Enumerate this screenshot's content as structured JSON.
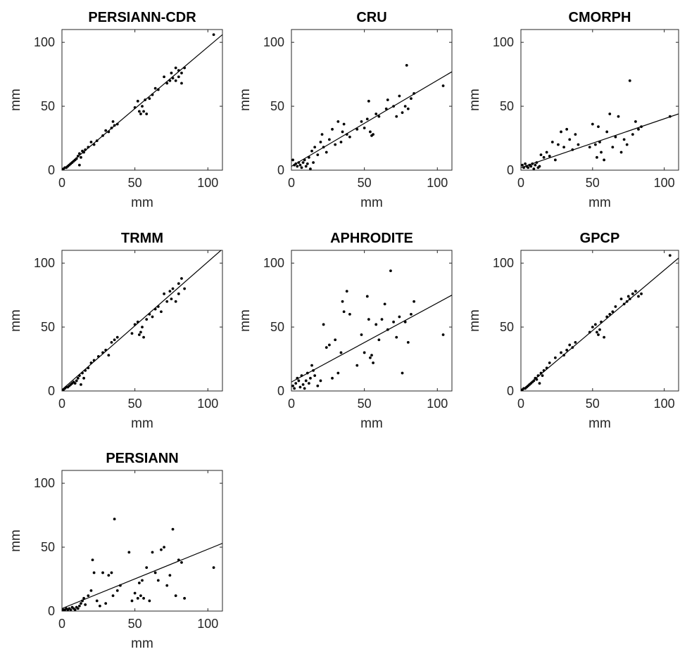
{
  "chart_data": [
    {
      "type": "scatter",
      "title": "PERSIANN-CDR",
      "xlabel": "mm",
      "ylabel": "mm",
      "xlim": [
        0,
        110
      ],
      "ylim": [
        0,
        110
      ],
      "xticks": [
        0,
        50,
        100
      ],
      "yticks": [
        0,
        50,
        100
      ],
      "fit": [
        0,
        106
      ],
      "points": [
        [
          1,
          1
        ],
        [
          2,
          2
        ],
        [
          3,
          2
        ],
        [
          4,
          3
        ],
        [
          5,
          4
        ],
        [
          6,
          5
        ],
        [
          7,
          6
        ],
        [
          8,
          7
        ],
        [
          9,
          8
        ],
        [
          10,
          9
        ],
        [
          11,
          11
        ],
        [
          12,
          4
        ],
        [
          12,
          13
        ],
        [
          13,
          10
        ],
        [
          14,
          15
        ],
        [
          15,
          14
        ],
        [
          16,
          16
        ],
        [
          18,
          18
        ],
        [
          20,
          22
        ],
        [
          22,
          20
        ],
        [
          24,
          23
        ],
        [
          28,
          27
        ],
        [
          30,
          31
        ],
        [
          32,
          30
        ],
        [
          34,
          33
        ],
        [
          35,
          38
        ],
        [
          36,
          35
        ],
        [
          38,
          36
        ],
        [
          50,
          49
        ],
        [
          52,
          54
        ],
        [
          53,
          46
        ],
        [
          54,
          44
        ],
        [
          55,
          50
        ],
        [
          56,
          46
        ],
        [
          57,
          55
        ],
        [
          58,
          44
        ],
        [
          60,
          56
        ],
        [
          62,
          59
        ],
        [
          64,
          64
        ],
        [
          66,
          63
        ],
        [
          70,
          73
        ],
        [
          72,
          68
        ],
        [
          74,
          70
        ],
        [
          75,
          76
        ],
        [
          76,
          72
        ],
        [
          78,
          80
        ],
        [
          78,
          70
        ],
        [
          80,
          73
        ],
        [
          80,
          78
        ],
        [
          82,
          68
        ],
        [
          82,
          76
        ],
        [
          84,
          80
        ],
        [
          104,
          106
        ]
      ]
    },
    {
      "type": "scatter",
      "title": "CRU",
      "xlabel": "mm",
      "ylabel": "mm",
      "xlim": [
        0,
        110
      ],
      "ylim": [
        0,
        110
      ],
      "xticks": [
        0,
        50,
        100
      ],
      "yticks": [
        0,
        50,
        100
      ],
      "fit": [
        3,
        77
      ],
      "points": [
        [
          1,
          8
        ],
        [
          2,
          4
        ],
        [
          3,
          5
        ],
        [
          4,
          3
        ],
        [
          5,
          6
        ],
        [
          6,
          4
        ],
        [
          7,
          2
        ],
        [
          8,
          6
        ],
        [
          9,
          8
        ],
        [
          10,
          3
        ],
        [
          11,
          5
        ],
        [
          12,
          10
        ],
        [
          13,
          1
        ],
        [
          14,
          15
        ],
        [
          15,
          6
        ],
        [
          16,
          18
        ],
        [
          18,
          12
        ],
        [
          20,
          22
        ],
        [
          21,
          28
        ],
        [
          22,
          18
        ],
        [
          24,
          14
        ],
        [
          26,
          24
        ],
        [
          28,
          32
        ],
        [
          30,
          20
        ],
        [
          32,
          38
        ],
        [
          34,
          22
        ],
        [
          35,
          30
        ],
        [
          36,
          36
        ],
        [
          38,
          28
        ],
        [
          40,
          26
        ],
        [
          45,
          32
        ],
        [
          48,
          38
        ],
        [
          50,
          33
        ],
        [
          52,
          40
        ],
        [
          53,
          54
        ],
        [
          54,
          30
        ],
        [
          55,
          27
        ],
        [
          56,
          28
        ],
        [
          58,
          44
        ],
        [
          60,
          42
        ],
        [
          65,
          48
        ],
        [
          66,
          55
        ],
        [
          70,
          50
        ],
        [
          72,
          42
        ],
        [
          74,
          58
        ],
        [
          76,
          45
        ],
        [
          78,
          50
        ],
        [
          79,
          82
        ],
        [
          80,
          48
        ],
        [
          82,
          56
        ],
        [
          84,
          60
        ],
        [
          104,
          66
        ]
      ]
    },
    {
      "type": "scatter",
      "title": "CMORPH",
      "xlabel": "mm",
      "ylabel": "mm",
      "xlim": [
        0,
        110
      ],
      "ylim": [
        0,
        110
      ],
      "xticks": [
        0,
        50,
        100
      ],
      "yticks": [
        0,
        50,
        100
      ],
      "fit": [
        2,
        44
      ],
      "points": [
        [
          1,
          4
        ],
        [
          2,
          2
        ],
        [
          3,
          5
        ],
        [
          4,
          3
        ],
        [
          5,
          2
        ],
        [
          6,
          4
        ],
        [
          7,
          3
        ],
        [
          8,
          5
        ],
        [
          9,
          1
        ],
        [
          10,
          4
        ],
        [
          11,
          6
        ],
        [
          12,
          2
        ],
        [
          13,
          3
        ],
        [
          14,
          12
        ],
        [
          16,
          10
        ],
        [
          18,
          14
        ],
        [
          20,
          11
        ],
        [
          22,
          22
        ],
        [
          24,
          8
        ],
        [
          26,
          20
        ],
        [
          28,
          30
        ],
        [
          30,
          18
        ],
        [
          32,
          32
        ],
        [
          34,
          24
        ],
        [
          36,
          16
        ],
        [
          38,
          28
        ],
        [
          40,
          20
        ],
        [
          48,
          18
        ],
        [
          50,
          36
        ],
        [
          52,
          20
        ],
        [
          53,
          10
        ],
        [
          54,
          34
        ],
        [
          55,
          22
        ],
        [
          56,
          14
        ],
        [
          58,
          8
        ],
        [
          60,
          30
        ],
        [
          62,
          44
        ],
        [
          64,
          18
        ],
        [
          66,
          26
        ],
        [
          68,
          42
        ],
        [
          70,
          14
        ],
        [
          72,
          24
        ],
        [
          74,
          20
        ],
        [
          76,
          70
        ],
        [
          78,
          28
        ],
        [
          80,
          38
        ],
        [
          82,
          32
        ],
        [
          84,
          34
        ],
        [
          104,
          42
        ]
      ]
    },
    {
      "type": "scatter",
      "title": "TRMM",
      "xlabel": "mm",
      "ylabel": "mm",
      "xlim": [
        0,
        110
      ],
      "ylim": [
        0,
        110
      ],
      "xticks": [
        0,
        50,
        100
      ],
      "yticks": [
        0,
        50,
        100
      ],
      "fit": [
        1,
        111
      ],
      "points": [
        [
          1,
          1
        ],
        [
          2,
          2
        ],
        [
          3,
          3
        ],
        [
          4,
          3
        ],
        [
          5,
          4
        ],
        [
          6,
          5
        ],
        [
          7,
          6
        ],
        [
          8,
          7
        ],
        [
          9,
          6
        ],
        [
          10,
          8
        ],
        [
          11,
          10
        ],
        [
          12,
          12
        ],
        [
          13,
          5
        ],
        [
          14,
          14
        ],
        [
          15,
          10
        ],
        [
          16,
          16
        ],
        [
          18,
          18
        ],
        [
          20,
          22
        ],
        [
          22,
          24
        ],
        [
          25,
          27
        ],
        [
          28,
          30
        ],
        [
          30,
          32
        ],
        [
          32,
          28
        ],
        [
          34,
          38
        ],
        [
          36,
          40
        ],
        [
          38,
          42
        ],
        [
          48,
          45
        ],
        [
          50,
          52
        ],
        [
          52,
          54
        ],
        [
          53,
          44
        ],
        [
          54,
          46
        ],
        [
          55,
          50
        ],
        [
          56,
          42
        ],
        [
          58,
          56
        ],
        [
          60,
          60
        ],
        [
          62,
          58
        ],
        [
          64,
          64
        ],
        [
          66,
          66
        ],
        [
          68,
          62
        ],
        [
          70,
          76
        ],
        [
          72,
          70
        ],
        [
          74,
          78
        ],
        [
          75,
          72
        ],
        [
          76,
          80
        ],
        [
          78,
          70
        ],
        [
          80,
          84
        ],
        [
          80,
          76
        ],
        [
          82,
          88
        ],
        [
          84,
          80
        ]
      ]
    },
    {
      "type": "scatter",
      "title": "APHRODITE",
      "xlabel": "mm",
      "ylabel": "mm",
      "xlim": [
        0,
        110
      ],
      "ylim": [
        0,
        110
      ],
      "xticks": [
        0,
        50,
        100
      ],
      "yticks": [
        0,
        50,
        100
      ],
      "fit": [
        7,
        75
      ],
      "points": [
        [
          1,
          4
        ],
        [
          2,
          2
        ],
        [
          3,
          6
        ],
        [
          4,
          10
        ],
        [
          5,
          8
        ],
        [
          6,
          3
        ],
        [
          7,
          12
        ],
        [
          8,
          5
        ],
        [
          9,
          2
        ],
        [
          10,
          8
        ],
        [
          11,
          14
        ],
        [
          12,
          6
        ],
        [
          13,
          10
        ],
        [
          14,
          20
        ],
        [
          15,
          16
        ],
        [
          16,
          12
        ],
        [
          18,
          4
        ],
        [
          20,
          8
        ],
        [
          22,
          52
        ],
        [
          24,
          34
        ],
        [
          26,
          36
        ],
        [
          28,
          10
        ],
        [
          30,
          40
        ],
        [
          32,
          14
        ],
        [
          34,
          30
        ],
        [
          35,
          70
        ],
        [
          36,
          62
        ],
        [
          38,
          78
        ],
        [
          40,
          60
        ],
        [
          45,
          20
        ],
        [
          48,
          44
        ],
        [
          50,
          30
        ],
        [
          52,
          74
        ],
        [
          53,
          56
        ],
        [
          54,
          26
        ],
        [
          55,
          28
        ],
        [
          56,
          22
        ],
        [
          58,
          52
        ],
        [
          60,
          40
        ],
        [
          62,
          56
        ],
        [
          64,
          68
        ],
        [
          66,
          48
        ],
        [
          68,
          94
        ],
        [
          70,
          54
        ],
        [
          72,
          42
        ],
        [
          74,
          58
        ],
        [
          76,
          14
        ],
        [
          78,
          54
        ],
        [
          80,
          38
        ],
        [
          82,
          60
        ],
        [
          84,
          70
        ],
        [
          104,
          44
        ]
      ]
    },
    {
      "type": "scatter",
      "title": "GPCP",
      "xlabel": "mm",
      "ylabel": "mm",
      "xlim": [
        0,
        110
      ],
      "ylim": [
        0,
        110
      ],
      "xticks": [
        0,
        50,
        100
      ],
      "yticks": [
        0,
        50,
        100
      ],
      "fit": [
        0,
        104
      ],
      "points": [
        [
          1,
          1
        ],
        [
          2,
          2
        ],
        [
          3,
          2
        ],
        [
          4,
          3
        ],
        [
          5,
          4
        ],
        [
          6,
          5
        ],
        [
          7,
          6
        ],
        [
          8,
          7
        ],
        [
          9,
          8
        ],
        [
          10,
          10
        ],
        [
          11,
          9
        ],
        [
          12,
          12
        ],
        [
          13,
          6
        ],
        [
          14,
          14
        ],
        [
          15,
          12
        ],
        [
          16,
          16
        ],
        [
          18,
          18
        ],
        [
          20,
          22
        ],
        [
          24,
          26
        ],
        [
          28,
          30
        ],
        [
          30,
          28
        ],
        [
          32,
          32
        ],
        [
          34,
          36
        ],
        [
          36,
          34
        ],
        [
          38,
          38
        ],
        [
          48,
          46
        ],
        [
          50,
          50
        ],
        [
          52,
          52
        ],
        [
          53,
          46
        ],
        [
          54,
          44
        ],
        [
          55,
          48
        ],
        [
          56,
          54
        ],
        [
          58,
          42
        ],
        [
          60,
          58
        ],
        [
          62,
          60
        ],
        [
          64,
          62
        ],
        [
          66,
          66
        ],
        [
          70,
          72
        ],
        [
          72,
          68
        ],
        [
          74,
          70
        ],
        [
          75,
          74
        ],
        [
          76,
          72
        ],
        [
          78,
          76
        ],
        [
          80,
          78
        ],
        [
          82,
          74
        ],
        [
          84,
          76
        ],
        [
          104,
          106
        ]
      ]
    },
    {
      "type": "scatter",
      "title": "PERSIANN",
      "xlabel": "mm",
      "ylabel": "mm",
      "xlim": [
        0,
        110
      ],
      "ylim": [
        0,
        110
      ],
      "xticks": [
        0,
        50,
        100
      ],
      "yticks": [
        0,
        50,
        100
      ],
      "fit": [
        2,
        53
      ],
      "points": [
        [
          1,
          1
        ],
        [
          2,
          1
        ],
        [
          3,
          2
        ],
        [
          4,
          1
        ],
        [
          5,
          2
        ],
        [
          6,
          1
        ],
        [
          7,
          3
        ],
        [
          8,
          2
        ],
        [
          9,
          1
        ],
        [
          10,
          3
        ],
        [
          11,
          2
        ],
        [
          12,
          4
        ],
        [
          13,
          6
        ],
        [
          14,
          8
        ],
        [
          15,
          10
        ],
        [
          16,
          5
        ],
        [
          18,
          12
        ],
        [
          20,
          16
        ],
        [
          21,
          40
        ],
        [
          22,
          30
        ],
        [
          24,
          8
        ],
        [
          26,
          4
        ],
        [
          28,
          30
        ],
        [
          30,
          6
        ],
        [
          32,
          28
        ],
        [
          34,
          30
        ],
        [
          35,
          12
        ],
        [
          36,
          72
        ],
        [
          38,
          16
        ],
        [
          40,
          20
        ],
        [
          46,
          46
        ],
        [
          48,
          8
        ],
        [
          50,
          14
        ],
        [
          52,
          10
        ],
        [
          53,
          22
        ],
        [
          54,
          12
        ],
        [
          55,
          24
        ],
        [
          56,
          10
        ],
        [
          58,
          34
        ],
        [
          60,
          8
        ],
        [
          62,
          46
        ],
        [
          64,
          30
        ],
        [
          66,
          24
        ],
        [
          68,
          48
        ],
        [
          70,
          50
        ],
        [
          72,
          20
        ],
        [
          74,
          28
        ],
        [
          76,
          64
        ],
        [
          78,
          12
        ],
        [
          80,
          40
        ],
        [
          82,
          38
        ],
        [
          84,
          10
        ],
        [
          104,
          34
        ]
      ]
    }
  ]
}
